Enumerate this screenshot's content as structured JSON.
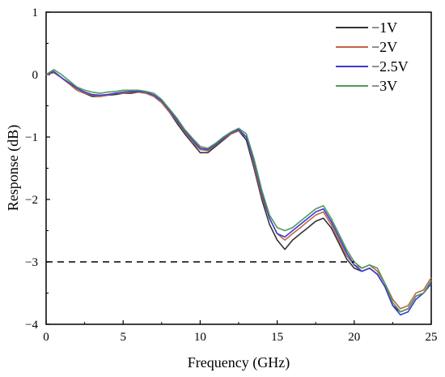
{
  "chart_data": {
    "type": "line",
    "xlabel": "Frequency (GHz)",
    "ylabel": "Response (dB)",
    "xlim": [
      0,
      25
    ],
    "ylim": [
      -4,
      1
    ],
    "xticks": [
      0,
      5,
      10,
      15,
      20,
      25
    ],
    "yticks": [
      1,
      0,
      -1,
      -2,
      -3,
      -4
    ],
    "grid": false,
    "legend_position": "top-right",
    "reference_line": {
      "y": -3,
      "x_range": [
        0,
        20
      ],
      "style": "dashed",
      "color": "#000000"
    },
    "series": [
      {
        "name": "−1V",
        "color": "#333333",
        "x": [
          0,
          0.5,
          1,
          1.5,
          2,
          2.5,
          3,
          3.5,
          4,
          4.5,
          5,
          5.5,
          6,
          6.5,
          7,
          7.5,
          8,
          8.5,
          9,
          9.5,
          10,
          10.5,
          11,
          11.5,
          12,
          12.5,
          13,
          13.5,
          14,
          14.5,
          15,
          15.5,
          16,
          16.5,
          17,
          17.5,
          18,
          18.5,
          19,
          19.5,
          20,
          20.5,
          21,
          21.5,
          22,
          22.5,
          23,
          23.5,
          24,
          24.5,
          25
        ],
        "y": [
          0.0,
          0.05,
          -0.05,
          -0.15,
          -0.25,
          -0.3,
          -0.35,
          -0.35,
          -0.33,
          -0.32,
          -0.3,
          -0.3,
          -0.28,
          -0.3,
          -0.35,
          -0.45,
          -0.6,
          -0.78,
          -0.95,
          -1.1,
          -1.25,
          -1.25,
          -1.15,
          -1.05,
          -0.95,
          -0.9,
          -1.05,
          -1.5,
          -2.0,
          -2.4,
          -2.65,
          -2.8,
          -2.65,
          -2.55,
          -2.45,
          -2.35,
          -2.3,
          -2.45,
          -2.7,
          -2.95,
          -3.1,
          -3.15,
          -3.1,
          -3.2,
          -3.4,
          -3.7,
          -3.8,
          -3.75,
          -3.55,
          -3.5,
          -3.3
        ]
      },
      {
        "name": "−2V",
        "color": "#c1654a",
        "x": [
          0,
          0.5,
          1,
          1.5,
          2,
          2.5,
          3,
          3.5,
          4,
          4.5,
          5,
          5.5,
          6,
          6.5,
          7,
          7.5,
          8,
          8.5,
          9,
          9.5,
          10,
          10.5,
          11,
          11.5,
          12,
          12.5,
          13,
          13.5,
          14,
          14.5,
          15,
          15.5,
          16,
          16.5,
          17,
          17.5,
          18,
          18.5,
          19,
          19.5,
          20,
          20.5,
          21,
          21.5,
          22,
          22.5,
          23,
          23.5,
          24,
          24.5,
          25
        ],
        "y": [
          0.0,
          0.03,
          -0.05,
          -0.15,
          -0.25,
          -0.3,
          -0.33,
          -0.35,
          -0.33,
          -0.3,
          -0.3,
          -0.28,
          -0.28,
          -0.3,
          -0.35,
          -0.45,
          -0.6,
          -0.75,
          -0.92,
          -1.08,
          -1.2,
          -1.22,
          -1.13,
          -1.03,
          -0.95,
          -0.9,
          -1.0,
          -1.45,
          -1.95,
          -2.3,
          -2.55,
          -2.65,
          -2.55,
          -2.45,
          -2.35,
          -2.25,
          -2.2,
          -2.4,
          -2.65,
          -2.9,
          -3.05,
          -3.1,
          -3.05,
          -3.15,
          -3.35,
          -3.6,
          -3.75,
          -3.7,
          -3.5,
          -3.45,
          -3.25
        ]
      },
      {
        "name": "−2.5V",
        "color": "#3b3bd1",
        "x": [
          0,
          0.5,
          1,
          1.5,
          2,
          2.5,
          3,
          3.5,
          4,
          4.5,
          5,
          5.5,
          6,
          6.5,
          7,
          7.5,
          8,
          8.5,
          9,
          9.5,
          10,
          10.5,
          11,
          11.5,
          12,
          12.5,
          13,
          13.5,
          14,
          14.5,
          15,
          15.5,
          16,
          16.5,
          17,
          17.5,
          18,
          18.5,
          19,
          19.5,
          20,
          20.5,
          21,
          21.5,
          22,
          22.5,
          23,
          23.5,
          24,
          24.5,
          25
        ],
        "y": [
          0.0,
          0.05,
          -0.05,
          -0.13,
          -0.22,
          -0.28,
          -0.32,
          -0.33,
          -0.32,
          -0.3,
          -0.28,
          -0.27,
          -0.27,
          -0.28,
          -0.33,
          -0.42,
          -0.57,
          -0.73,
          -0.9,
          -1.05,
          -1.18,
          -1.2,
          -1.12,
          -1.02,
          -0.93,
          -0.88,
          -1.0,
          -1.4,
          -1.9,
          -2.3,
          -2.55,
          -2.6,
          -2.5,
          -2.4,
          -2.3,
          -2.2,
          -2.15,
          -2.35,
          -2.6,
          -2.85,
          -3.05,
          -3.15,
          -3.1,
          -3.2,
          -3.4,
          -3.7,
          -3.85,
          -3.8,
          -3.6,
          -3.5,
          -3.35
        ]
      },
      {
        "name": "−3V",
        "color": "#4f9a5f",
        "x": [
          0,
          0.5,
          1,
          1.5,
          2,
          2.5,
          3,
          3.5,
          4,
          4.5,
          5,
          5.5,
          6,
          6.5,
          7,
          7.5,
          8,
          8.5,
          9,
          9.5,
          10,
          10.5,
          11,
          11.5,
          12,
          12.5,
          13,
          13.5,
          14,
          14.5,
          15,
          15.5,
          16,
          16.5,
          17,
          17.5,
          18,
          18.5,
          19,
          19.5,
          20,
          20.5,
          21,
          21.5,
          22,
          22.5,
          23,
          23.5,
          24,
          24.5,
          25
        ],
        "y": [
          0.0,
          0.08,
          0.0,
          -0.1,
          -0.2,
          -0.25,
          -0.28,
          -0.3,
          -0.28,
          -0.27,
          -0.25,
          -0.25,
          -0.25,
          -0.27,
          -0.3,
          -0.4,
          -0.55,
          -0.7,
          -0.88,
          -1.02,
          -1.15,
          -1.18,
          -1.1,
          -1.0,
          -0.92,
          -0.86,
          -0.95,
          -1.35,
          -1.85,
          -2.25,
          -2.45,
          -2.5,
          -2.45,
          -2.35,
          -2.25,
          -2.15,
          -2.1,
          -2.3,
          -2.55,
          -2.8,
          -3.0,
          -3.1,
          -3.05,
          -3.1,
          -3.35,
          -3.65,
          -3.8,
          -3.75,
          -3.55,
          -3.5,
          -3.3
        ]
      }
    ]
  }
}
